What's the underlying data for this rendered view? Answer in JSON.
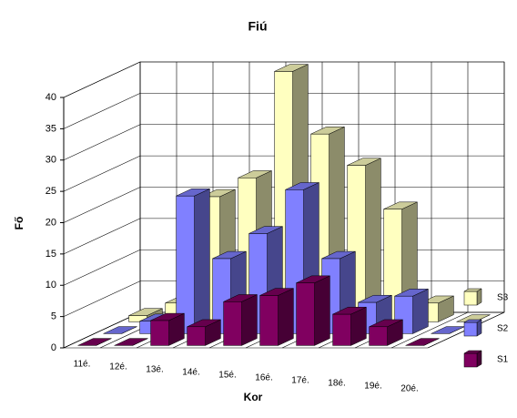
{
  "chart_data": {
    "type": "bar3d",
    "title": "Fiú",
    "x_label": "Kor",
    "y_label": "Fő",
    "categories": [
      "11é.",
      "12é.",
      "13é.",
      "14é.",
      "15é.",
      "16é.",
      "17é.",
      "18é.",
      "19é.",
      "20é."
    ],
    "series": [
      {
        "name": "S1",
        "color": "#800060",
        "values": [
          0,
          0,
          4,
          3,
          7,
          8,
          10,
          5,
          3,
          0
        ]
      },
      {
        "name": "S2",
        "color": "#8080ff",
        "values": [
          0,
          2,
          22,
          12,
          16,
          23,
          12,
          5,
          6,
          0
        ]
      },
      {
        "name": "S3",
        "color": "#ffffc0",
        "values": [
          1,
          3,
          20,
          23,
          40,
          30,
          25,
          18,
          3,
          0
        ]
      }
    ],
    "ylim": [
      0,
      40
    ],
    "yticks": [
      0,
      5,
      10,
      15,
      20,
      25,
      30,
      35,
      40
    ],
    "grid": true
  }
}
